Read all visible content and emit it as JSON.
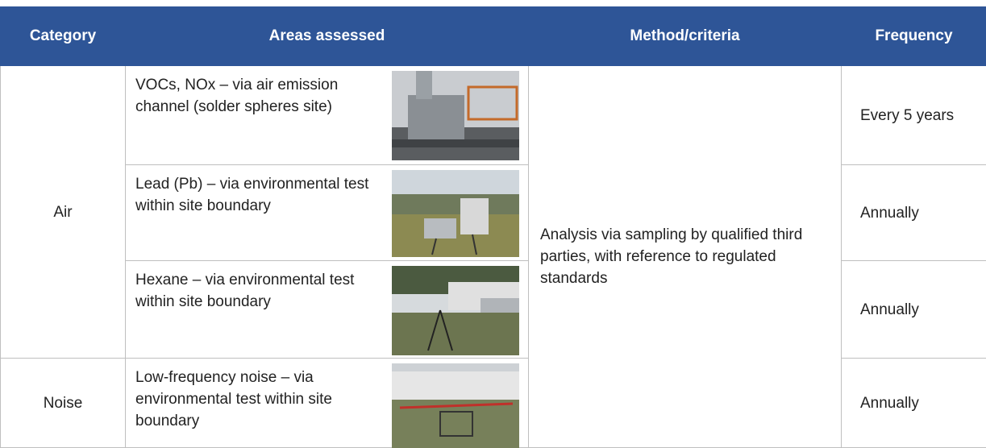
{
  "table": {
    "header": [
      "Category",
      "Areas assessed",
      "Method/criteria",
      "Frequency"
    ],
    "method": "Analysis via sampling by qualified third parties, with reference to regulated standards",
    "rows": [
      {
        "category": "Air",
        "items": [
          {
            "area": "VOCs, NOx – via air emission channel (solder spheres site)",
            "frequency": "Every 5 years"
          },
          {
            "area": "Lead (Pb) – via environmental test within site boundary",
            "frequency": "Annually"
          },
          {
            "area": "Hexane – via environmental test within site boundary",
            "frequency": "Annually"
          }
        ]
      },
      {
        "category": "Noise",
        "items": [
          {
            "area": "Low-frequency noise – via environmental test within site boundary",
            "frequency": "Annually"
          }
        ]
      }
    ]
  }
}
